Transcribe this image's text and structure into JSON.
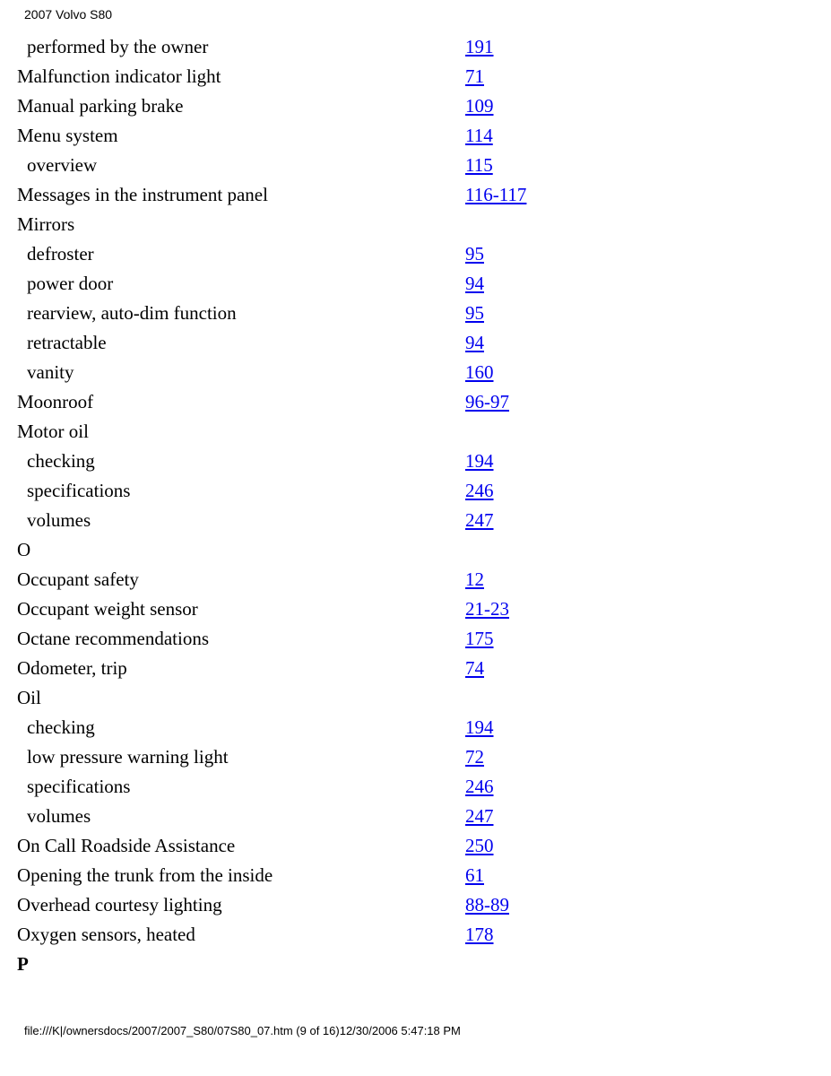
{
  "header": "2007 Volvo S80",
  "footer": "file:///K|/ownersdocs/2007/2007_S80/07S80_07.htm (9 of 16)12/30/2006 5:47:18 PM",
  "rows": [
    {
      "label": "performed by the owner",
      "page": "191 ",
      "indent": true
    },
    {
      "label": "Malfunction indicator light",
      "page": "71 "
    },
    {
      "label": "Manual parking brake",
      "page": "109 "
    },
    {
      "label": "Menu system",
      "page": "114 "
    },
    {
      "label": "overview",
      "page": "115 ",
      "indent": true
    },
    {
      "label": "Messages in the instrument panel",
      "page": "116-117"
    },
    {
      "label": "Mirrors"
    },
    {
      "label": "defroster",
      "page": "95 ",
      "indent": true
    },
    {
      "label": "power door",
      "page": "94 ",
      "indent": true
    },
    {
      "label": "rearview, auto-dim function",
      "page": "95 ",
      "indent": true
    },
    {
      "label": "retractable",
      "page": "94 ",
      "indent": true
    },
    {
      "label": "vanity",
      "page": "160 ",
      "indent": true
    },
    {
      "label": "Moonroof",
      "page": "96-97 "
    },
    {
      "label": "Motor oil"
    },
    {
      "label": "checking",
      "page": "194 ",
      "indent": true
    },
    {
      "label": "specifications",
      "page": "246 ",
      "indent": true
    },
    {
      "label": "volumes",
      "page": "247 ",
      "indent": true
    },
    {
      "label": "O"
    },
    {
      "label": "Occupant safety",
      "page": "12 "
    },
    {
      "label": "Occupant weight sensor",
      "page": "21-23 "
    },
    {
      "label": "Octane recommendations",
      "page": "175 "
    },
    {
      "label": "Odometer, trip",
      "page": "74 "
    },
    {
      "label": "Oil"
    },
    {
      "label": "checking",
      "page": "194 ",
      "indent": true
    },
    {
      "label": "low pressure warning light",
      "page": "72 ",
      "indent": true
    },
    {
      "label": "specifications",
      "page": "246 ",
      "indent": true
    },
    {
      "label": "volumes",
      "page": "247 ",
      "indent": true
    },
    {
      "label": "On Call Roadside Assistance",
      "page": "250 "
    },
    {
      "label": "Opening the trunk from the inside",
      "page": "61 "
    },
    {
      "label": "Overhead courtesy lighting",
      "page": "88-89 "
    },
    {
      "label": "Oxygen sensors, heated",
      "page": "178 "
    },
    {
      "label": "P",
      "bold": true
    }
  ]
}
